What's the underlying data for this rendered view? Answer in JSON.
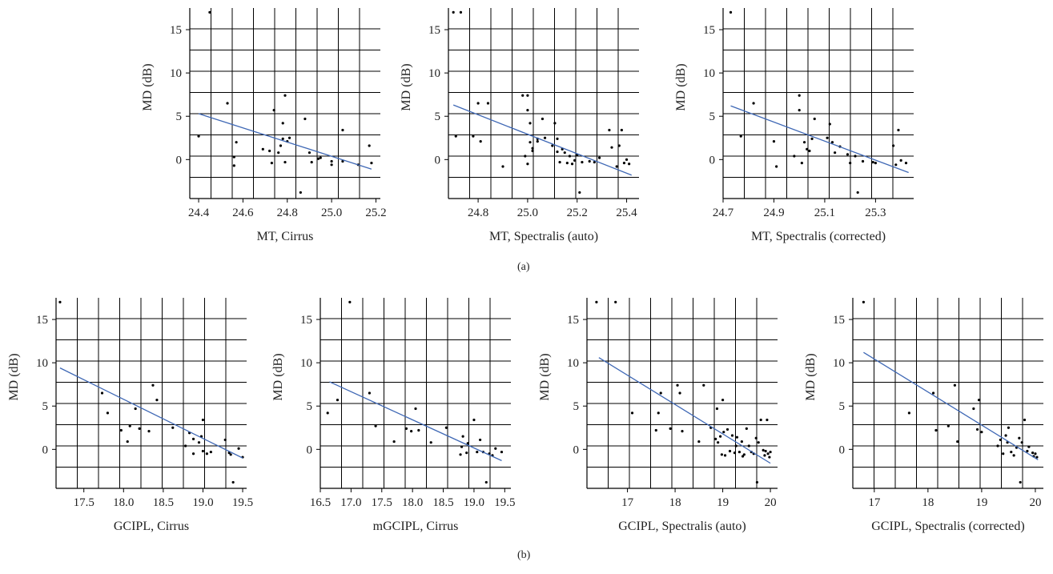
{
  "panel_labels": {
    "a": "(a)",
    "b": "(b)"
  },
  "chart_data": [
    {
      "type": "scatter",
      "xlabel": "MT, Cirrus",
      "ylabel": "MD (dB)",
      "xlim": [
        24.36,
        25.22
      ],
      "ylim": [
        -4.5,
        17.5
      ],
      "xticks": [
        24.4,
        24.6,
        24.8,
        25.0,
        25.2
      ],
      "xtick_labels": [
        "24.4",
        "24.6",
        "24.8",
        "25.0",
        "25.2"
      ],
      "yticks": [
        0,
        5,
        10,
        15
      ],
      "ytick_labels": [
        "0",
        "5",
        "10",
        "15"
      ],
      "grid": true,
      "points": [
        [
          24.4,
          2.7
        ],
        [
          24.45,
          17.0
        ],
        [
          24.53,
          6.5
        ],
        [
          24.56,
          -0.7
        ],
        [
          24.56,
          0.3
        ],
        [
          24.57,
          2.0
        ],
        [
          24.69,
          1.2
        ],
        [
          24.72,
          1.0
        ],
        [
          24.73,
          -0.4
        ],
        [
          24.74,
          5.7
        ],
        [
          24.76,
          0.8
        ],
        [
          24.77,
          1.6
        ],
        [
          24.78,
          4.2
        ],
        [
          24.78,
          2.4
        ],
        [
          24.79,
          7.4
        ],
        [
          24.79,
          -0.3
        ],
        [
          24.8,
          2.1
        ],
        [
          24.81,
          2.5
        ],
        [
          24.86,
          -3.8
        ],
        [
          24.88,
          4.7
        ],
        [
          24.9,
          0.8
        ],
        [
          24.91,
          -0.3
        ],
        [
          24.94,
          0.1
        ],
        [
          24.95,
          0.2
        ],
        [
          25.0,
          -0.6
        ],
        [
          25.0,
          -0.2
        ],
        [
          25.05,
          3.4
        ],
        [
          25.05,
          -0.2
        ],
        [
          25.12,
          -0.6
        ],
        [
          25.17,
          1.6
        ],
        [
          25.18,
          -0.4
        ]
      ],
      "trendline": [
        [
          24.4,
          5.3
        ],
        [
          25.18,
          -1.1
        ]
      ]
    },
    {
      "type": "scatter",
      "xlabel": "MT, Spectralis (auto)",
      "ylabel": "MD (dB)",
      "xlim": [
        24.68,
        25.45
      ],
      "ylim": [
        -4.5,
        17.5
      ],
      "xticks": [
        24.8,
        25.0,
        25.2,
        25.4
      ],
      "xtick_labels": [
        "24.8",
        "25.0",
        "25.2",
        "25.4"
      ],
      "yticks": [
        0,
        5,
        10,
        15
      ],
      "ytick_labels": [
        "0",
        "5",
        "10",
        "15"
      ],
      "grid": true,
      "points": [
        [
          24.7,
          17.0
        ],
        [
          24.71,
          2.7
        ],
        [
          24.73,
          17.0
        ],
        [
          24.78,
          2.7
        ],
        [
          24.8,
          6.5
        ],
        [
          24.81,
          2.1
        ],
        [
          24.84,
          6.5
        ],
        [
          24.9,
          -0.8
        ],
        [
          24.98,
          7.4
        ],
        [
          24.99,
          0.4
        ],
        [
          25.0,
          7.4
        ],
        [
          25.0,
          -0.5
        ],
        [
          25.0,
          5.7
        ],
        [
          25.01,
          2.0
        ],
        [
          25.01,
          4.2
        ],
        [
          25.02,
          1.0
        ],
        [
          25.02,
          1.3
        ],
        [
          25.04,
          2.4
        ],
        [
          25.04,
          2.1
        ],
        [
          25.06,
          4.7
        ],
        [
          25.07,
          2.5
        ],
        [
          25.1,
          1.6
        ],
        [
          25.11,
          4.2
        ],
        [
          25.12,
          2.4
        ],
        [
          25.12,
          0.9
        ],
        [
          25.13,
          -0.3
        ],
        [
          25.14,
          1.2
        ],
        [
          25.15,
          0.8
        ],
        [
          25.16,
          -0.4
        ],
        [
          25.17,
          0.4
        ],
        [
          25.18,
          -0.5
        ],
        [
          25.19,
          -0.1
        ],
        [
          25.2,
          0.5
        ],
        [
          25.21,
          -3.8
        ],
        [
          25.22,
          -0.3
        ],
        [
          25.25,
          -0.2
        ],
        [
          25.27,
          -0.3
        ],
        [
          25.29,
          0.2
        ],
        [
          25.33,
          3.4
        ],
        [
          25.34,
          1.4
        ],
        [
          25.36,
          -0.8
        ],
        [
          25.37,
          1.6
        ],
        [
          25.38,
          3.4
        ],
        [
          25.39,
          -0.4
        ],
        [
          25.4,
          0.0
        ],
        [
          25.41,
          -0.5
        ]
      ],
      "trendline": [
        [
          24.7,
          6.3
        ],
        [
          25.42,
          -1.8
        ]
      ]
    },
    {
      "type": "scatter",
      "xlabel": "MT, Spectralis (corrected)",
      "ylabel": "MD (dB)",
      "xlim": [
        24.7,
        25.45
      ],
      "ylim": [
        -4.5,
        17.5
      ],
      "xticks": [
        24.7,
        24.9,
        25.1,
        25.3
      ],
      "xtick_labels": [
        "24.7",
        "24.9",
        "25.1",
        "25.3"
      ],
      "yticks": [
        0,
        5,
        10,
        15
      ],
      "ytick_labels": [
        "0",
        "5",
        "10",
        "15"
      ],
      "grid": true,
      "points": [
        [
          24.73,
          17.0
        ],
        [
          24.77,
          2.7
        ],
        [
          24.82,
          6.5
        ],
        [
          24.9,
          2.1
        ],
        [
          24.91,
          -0.8
        ],
        [
          24.98,
          0.4
        ],
        [
          25.0,
          7.4
        ],
        [
          25.0,
          5.7
        ],
        [
          25.01,
          -0.4
        ],
        [
          25.02,
          2.0
        ],
        [
          25.03,
          1.2
        ],
        [
          25.04,
          1.0
        ],
        [
          25.05,
          2.4
        ],
        [
          25.06,
          4.7
        ],
        [
          25.11,
          2.5
        ],
        [
          25.12,
          4.1
        ],
        [
          25.13,
          2.0
        ],
        [
          25.14,
          0.8
        ],
        [
          25.16,
          1.5
        ],
        [
          25.19,
          0.6
        ],
        [
          25.2,
          -0.4
        ],
        [
          25.22,
          0.4
        ],
        [
          25.23,
          -3.8
        ],
        [
          25.25,
          -0.2
        ],
        [
          25.29,
          -0.3
        ],
        [
          25.3,
          -0.4
        ],
        [
          25.37,
          1.6
        ],
        [
          25.38,
          -0.6
        ],
        [
          25.39,
          3.4
        ],
        [
          25.4,
          -0.1
        ],
        [
          25.42,
          -0.4
        ]
      ],
      "trendline": [
        [
          24.73,
          6.2
        ],
        [
          25.43,
          -1.5
        ]
      ]
    },
    {
      "type": "scatter",
      "xlabel": "GCIPL, Cirrus",
      "ylabel": "MD (dB)",
      "xlim": [
        17.15,
        19.55
      ],
      "ylim": [
        -4.5,
        17.5
      ],
      "xticks": [
        17.5,
        18.0,
        18.5,
        19.0,
        19.5
      ],
      "xtick_labels": [
        "17.5",
        "18.0",
        "18.5",
        "19.0",
        "19.5"
      ],
      "yticks": [
        0,
        5,
        10,
        15
      ],
      "ytick_labels": [
        "0",
        "5",
        "10",
        "15"
      ],
      "grid": true,
      "points": [
        [
          17.2,
          17.0
        ],
        [
          17.73,
          6.5
        ],
        [
          17.8,
          4.2
        ],
        [
          17.97,
          2.2
        ],
        [
          18.05,
          0.9
        ],
        [
          18.08,
          2.7
        ],
        [
          18.15,
          4.7
        ],
        [
          18.2,
          2.4
        ],
        [
          18.32,
          2.1
        ],
        [
          18.37,
          7.4
        ],
        [
          18.42,
          5.7
        ],
        [
          18.62,
          2.5
        ],
        [
          18.78,
          0.4
        ],
        [
          18.83,
          1.9
        ],
        [
          18.88,
          1.2
        ],
        [
          18.88,
          -0.5
        ],
        [
          18.95,
          0.8
        ],
        [
          18.98,
          1.5
        ],
        [
          19.0,
          3.4
        ],
        [
          19.0,
          -0.2
        ],
        [
          19.05,
          -0.5
        ],
        [
          19.1,
          -0.3
        ],
        [
          19.28,
          1.1
        ],
        [
          19.33,
          -0.4
        ],
        [
          19.35,
          -0.6
        ],
        [
          19.38,
          -3.8
        ],
        [
          19.45,
          0.1
        ],
        [
          19.5,
          -0.9
        ]
      ],
      "trendline": [
        [
          17.2,
          9.4
        ],
        [
          19.5,
          -1.0
        ]
      ]
    },
    {
      "type": "scatter",
      "xlabel": "mGCIPL, Cirrus",
      "ylabel": "MD (dB)",
      "xlim": [
        16.5,
        19.6
      ],
      "ylim": [
        -4.5,
        17.5
      ],
      "xticks": [
        16.5,
        17.0,
        17.5,
        18.0,
        18.5,
        19.0,
        19.5
      ],
      "xtick_labels": [
        "16.5",
        "17.0",
        "17.5",
        "18.0",
        "18.5",
        "19.0",
        "19.5"
      ],
      "yticks": [
        0,
        5,
        10,
        15
      ],
      "ytick_labels": [
        "0",
        "5",
        "10",
        "15"
      ],
      "grid": true,
      "points": [
        [
          16.62,
          4.2
        ],
        [
          16.78,
          5.7
        ],
        [
          16.98,
          17.0
        ],
        [
          17.3,
          6.5
        ],
        [
          17.4,
          2.7
        ],
        [
          17.7,
          0.9
        ],
        [
          17.9,
          2.4
        ],
        [
          17.98,
          2.1
        ],
        [
          18.05,
          4.7
        ],
        [
          18.1,
          2.2
        ],
        [
          18.3,
          0.8
        ],
        [
          18.55,
          2.5
        ],
        [
          18.78,
          -0.6
        ],
        [
          18.8,
          0.3
        ],
        [
          18.82,
          1.5
        ],
        [
          18.88,
          -0.4
        ],
        [
          18.9,
          0.7
        ],
        [
          19.0,
          3.4
        ],
        [
          19.05,
          -0.3
        ],
        [
          19.1,
          1.1
        ],
        [
          19.15,
          -0.3
        ],
        [
          19.2,
          -3.8
        ],
        [
          19.25,
          -0.5
        ],
        [
          19.3,
          -0.7
        ],
        [
          19.35,
          0.1
        ],
        [
          19.45,
          -0.3
        ]
      ],
      "trendline": [
        [
          16.65,
          7.8
        ],
        [
          19.45,
          -1.3
        ]
      ]
    },
    {
      "type": "scatter",
      "xlabel": "GCIPL, Spectralis (auto)",
      "ylabel": "MD (dB)",
      "xlim": [
        16.15,
        20.15
      ],
      "ylim": [
        -4.5,
        17.5
      ],
      "xticks": [
        17,
        18,
        19,
        20
      ],
      "xtick_labels": [
        "17",
        "18",
        "19",
        "20"
      ],
      "yticks": [
        0,
        5,
        10,
        15
      ],
      "ytick_labels": [
        "0",
        "5",
        "10",
        "15"
      ],
      "grid": true,
      "points": [
        [
          16.35,
          17.0
        ],
        [
          16.75,
          17.0
        ],
        [
          17.1,
          4.2
        ],
        [
          17.6,
          2.2
        ],
        [
          17.65,
          4.2
        ],
        [
          17.7,
          6.5
        ],
        [
          17.9,
          2.4
        ],
        [
          18.05,
          7.4
        ],
        [
          18.1,
          6.5
        ],
        [
          18.15,
          2.1
        ],
        [
          18.5,
          0.9
        ],
        [
          18.6,
          7.4
        ],
        [
          18.75,
          2.5
        ],
        [
          18.85,
          1.2
        ],
        [
          18.88,
          4.7
        ],
        [
          18.9,
          0.8
        ],
        [
          18.95,
          1.5
        ],
        [
          18.98,
          -0.6
        ],
        [
          19.0,
          5.7
        ],
        [
          19.02,
          2.0
        ],
        [
          19.05,
          -0.7
        ],
        [
          19.1,
          2.3
        ],
        [
          19.15,
          -0.2
        ],
        [
          19.2,
          1.6
        ],
        [
          19.25,
          -0.4
        ],
        [
          19.28,
          0.4
        ],
        [
          19.3,
          1.4
        ],
        [
          19.35,
          -0.3
        ],
        [
          19.4,
          0.9
        ],
        [
          19.42,
          -0.8
        ],
        [
          19.45,
          -0.6
        ],
        [
          19.5,
          2.4
        ],
        [
          19.55,
          0.4
        ],
        [
          19.6,
          -0.3
        ],
        [
          19.65,
          -0.5
        ],
        [
          19.7,
          1.3
        ],
        [
          19.72,
          -3.8
        ],
        [
          19.75,
          0.8
        ],
        [
          19.8,
          3.4
        ],
        [
          19.85,
          -0.1
        ],
        [
          19.88,
          -0.7
        ],
        [
          19.9,
          -0.2
        ],
        [
          19.93,
          3.4
        ],
        [
          19.95,
          -0.5
        ],
        [
          19.98,
          -0.9
        ],
        [
          20.0,
          -0.3
        ]
      ],
      "trendline": [
        [
          16.4,
          10.6
        ],
        [
          20.0,
          -1.6
        ]
      ]
    },
    {
      "type": "scatter",
      "xlabel": "GCIPL, Spectralis (corrected)",
      "ylabel": "MD (dB)",
      "xlim": [
        16.6,
        20.15
      ],
      "ylim": [
        -4.5,
        17.5
      ],
      "xticks": [
        17,
        18,
        19,
        20
      ],
      "xtick_labels": [
        "17",
        "18",
        "19",
        "20"
      ],
      "yticks": [
        0,
        5,
        10,
        15
      ],
      "ytick_labels": [
        "0",
        "5",
        "10",
        "15"
      ],
      "grid": true,
      "points": [
        [
          16.8,
          17.0
        ],
        [
          17.65,
          4.2
        ],
        [
          18.1,
          6.5
        ],
        [
          18.15,
          2.2
        ],
        [
          18.38,
          2.7
        ],
        [
          18.5,
          7.4
        ],
        [
          18.55,
          0.9
        ],
        [
          18.85,
          4.7
        ],
        [
          18.92,
          2.3
        ],
        [
          18.95,
          5.7
        ],
        [
          19.0,
          2.0
        ],
        [
          19.3,
          0.4
        ],
        [
          19.35,
          1.1
        ],
        [
          19.4,
          -0.5
        ],
        [
          19.45,
          1.6
        ],
        [
          19.48,
          0.8
        ],
        [
          19.5,
          2.5
        ],
        [
          19.55,
          -0.3
        ],
        [
          19.6,
          -0.7
        ],
        [
          19.65,
          0.2
        ],
        [
          19.7,
          1.3
        ],
        [
          19.72,
          -3.8
        ],
        [
          19.75,
          0.8
        ],
        [
          19.8,
          3.4
        ],
        [
          19.85,
          -0.2
        ],
        [
          19.88,
          0.3
        ],
        [
          19.95,
          -0.4
        ],
        [
          19.97,
          -0.8
        ],
        [
          20.0,
          -0.5
        ],
        [
          20.03,
          -0.9
        ]
      ],
      "trendline": [
        [
          16.8,
          11.2
        ],
        [
          20.05,
          -1.2
        ]
      ]
    }
  ]
}
